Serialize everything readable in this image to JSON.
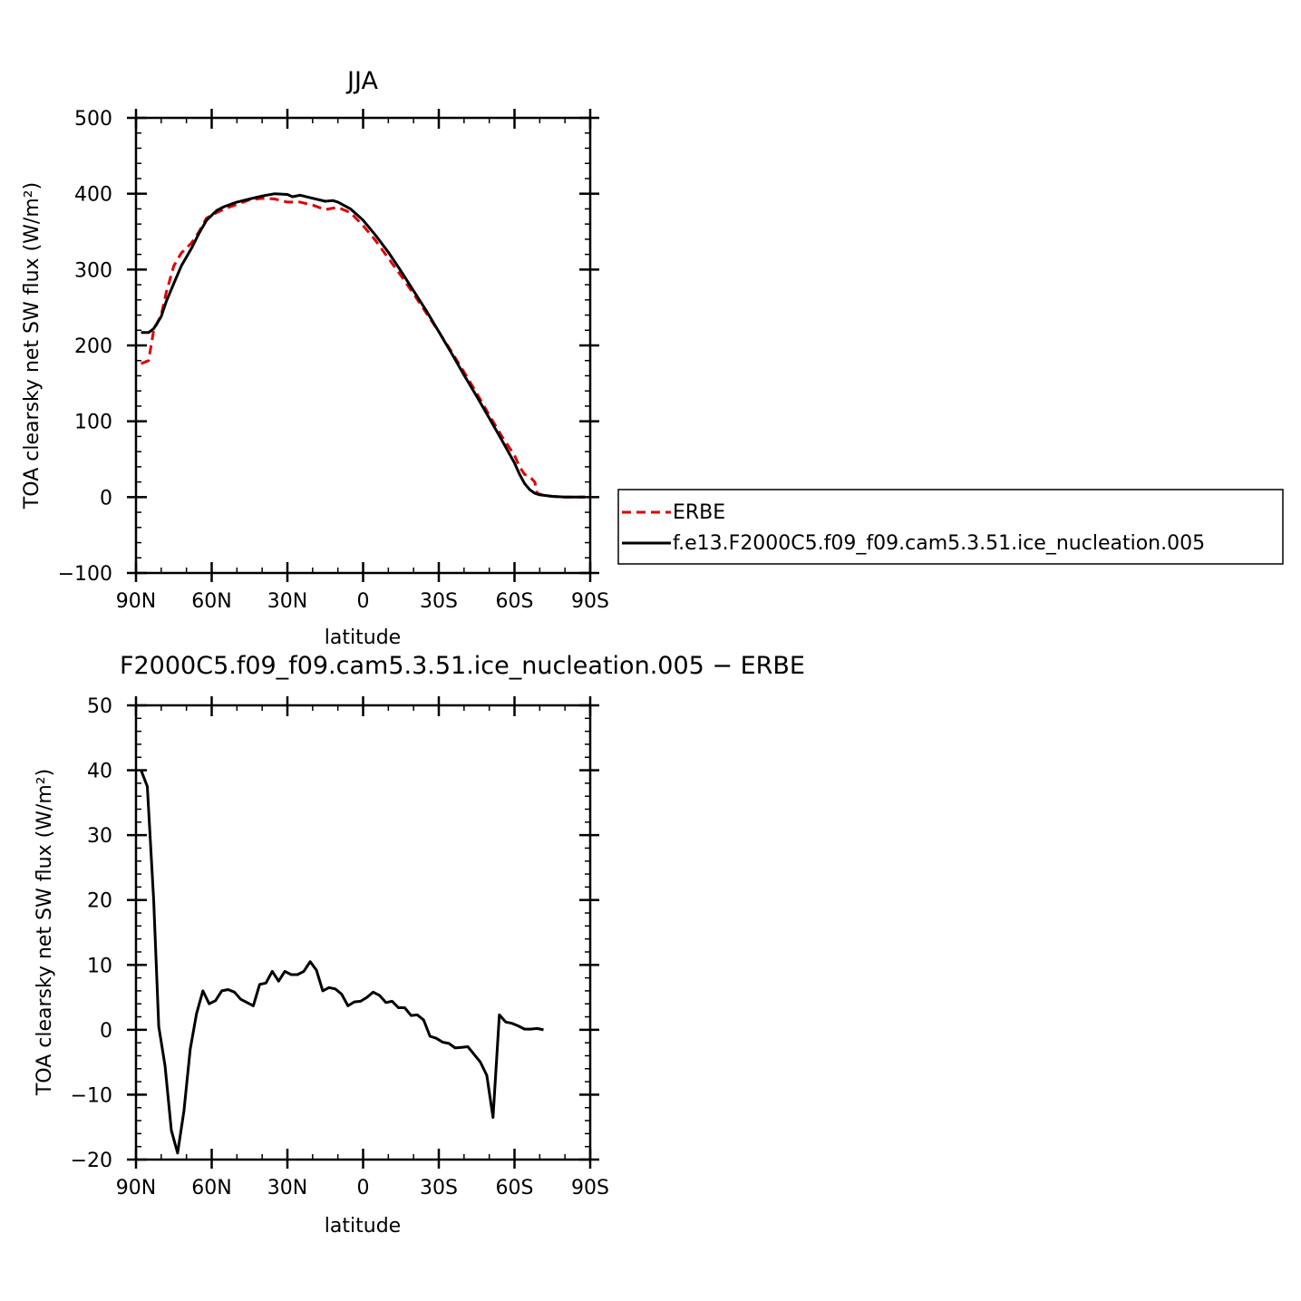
{
  "chart_data": [
    {
      "type": "line",
      "title": "JJA",
      "xlabel": "latitude",
      "ylabel": "TOA clearsky net SW flux (W/m²)",
      "xlim": [
        90,
        -90
      ],
      "ylim": [
        -100,
        500
      ],
      "x_ticks": [
        90,
        60,
        30,
        0,
        -30,
        -60,
        -90
      ],
      "x_tick_labels": [
        "90N",
        "60N",
        "30N",
        "0",
        "30S",
        "60S",
        "90S"
      ],
      "y_ticks": [
        -100,
        0,
        100,
        200,
        300,
        400,
        500
      ],
      "y_tick_labels": [
        "−100",
        "0",
        "100",
        "200",
        "300",
        "400",
        "500"
      ],
      "legend": {
        "placement": "right"
      },
      "series": [
        {
          "name": "ERBE",
          "color": "#e00000",
          "style": "dashed",
          "points": [
            [
              88,
              176
            ],
            [
              85,
              180
            ],
            [
              83,
              220
            ],
            [
              80,
              240
            ],
            [
              78,
              270
            ],
            [
              75,
              305
            ],
            [
              72,
              322
            ],
            [
              68,
              335
            ],
            [
              65,
              350
            ],
            [
              62,
              368
            ],
            [
              58,
              375
            ],
            [
              55,
              380
            ],
            [
              50,
              386
            ],
            [
              45,
              392
            ],
            [
              40,
              394
            ],
            [
              35,
              393
            ],
            [
              30,
              389
            ],
            [
              25,
              389
            ],
            [
              20,
              385
            ],
            [
              15,
              379
            ],
            [
              12,
              381
            ],
            [
              10,
              382
            ],
            [
              5,
              375
            ],
            [
              0,
              358
            ],
            [
              -5,
              338
            ],
            [
              -10,
              315
            ],
            [
              -15,
              292
            ],
            [
              -20,
              268
            ],
            [
              -25,
              243
            ],
            [
              -30,
              218
            ],
            [
              -35,
              192
            ],
            [
              -40,
              165
            ],
            [
              -45,
              137
            ],
            [
              -50,
              108
            ],
            [
              -55,
              80
            ],
            [
              -60,
              55
            ],
            [
              -62,
              40
            ],
            [
              -64,
              30
            ],
            [
              -66,
              27
            ],
            [
              -68,
              20
            ],
            [
              -69,
              5
            ],
            [
              -72,
              2
            ],
            [
              -75,
              1
            ],
            [
              -80,
              0
            ],
            [
              -85,
              0
            ],
            [
              -88,
              0
            ]
          ]
        },
        {
          "name": "f.e13.F2000C5.f09_f09.cam5.3.51.ice_nucleation.005",
          "color": "#000000",
          "style": "solid",
          "points": [
            [
              88,
              217
            ],
            [
              85,
              217
            ],
            [
              83,
              222
            ],
            [
              80,
              238
            ],
            [
              78,
              258
            ],
            [
              75,
              282
            ],
            [
              72,
              305
            ],
            [
              68,
              328
            ],
            [
              65,
              348
            ],
            [
              62,
              365
            ],
            [
              58,
              378
            ],
            [
              55,
              383
            ],
            [
              50,
              389
            ],
            [
              45,
              393
            ],
            [
              40,
              397
            ],
            [
              35,
              400
            ],
            [
              30,
              399
            ],
            [
              28,
              396
            ],
            [
              25,
              398
            ],
            [
              20,
              394
            ],
            [
              15,
              390
            ],
            [
              12,
              391
            ],
            [
              10,
              389
            ],
            [
              5,
              380
            ],
            [
              0,
              365
            ],
            [
              -5,
              345
            ],
            [
              -10,
              323
            ],
            [
              -15,
              298
            ],
            [
              -20,
              272
            ],
            [
              -25,
              246
            ],
            [
              -30,
              218
            ],
            [
              -35,
              190
            ],
            [
              -40,
              161
            ],
            [
              -45,
              133
            ],
            [
              -50,
              104
            ],
            [
              -55,
              75
            ],
            [
              -60,
              45
            ],
            [
              -62,
              30
            ],
            [
              -64,
              18
            ],
            [
              -66,
              10
            ],
            [
              -68,
              5
            ],
            [
              -70,
              3
            ],
            [
              -75,
              1
            ],
            [
              -80,
              0
            ],
            [
              -85,
              0
            ],
            [
              -88,
              0
            ]
          ]
        }
      ]
    },
    {
      "type": "line",
      "title": "F2000C5.f09_f09.cam5.3.51.ice_nucleation.005 − ERBE",
      "xlabel": "latitude",
      "ylabel": "TOA clearsky net SW flux (W/m²)",
      "xlim": [
        90,
        -90
      ],
      "ylim": [
        -20,
        50
      ],
      "x_ticks": [
        90,
        60,
        30,
        0,
        -30,
        -60,
        -90
      ],
      "x_tick_labels": [
        "90N",
        "60N",
        "30N",
        "0",
        "30S",
        "60S",
        "90S"
      ],
      "y_ticks": [
        -20,
        -10,
        0,
        10,
        20,
        30,
        40,
        50
      ],
      "y_tick_labels": [
        "−20",
        "−10",
        "0",
        "10",
        "20",
        "30",
        "40",
        "50"
      ],
      "series": [
        {
          "color": "#000000",
          "style": "solid",
          "points": [
            [
              88,
              40
            ],
            [
              85.5,
              37.5
            ],
            [
              83,
              20
            ],
            [
              81,
              0.5
            ],
            [
              78.5,
              -5.5
            ],
            [
              76,
              -15.5
            ],
            [
              73.5,
              -19
            ],
            [
              71,
              -12.5
            ],
            [
              68.5,
              -3
            ],
            [
              66,
              2.5
            ],
            [
              63.5,
              6
            ],
            [
              61,
              4
            ],
            [
              58.5,
              4.5
            ],
            [
              56,
              6
            ],
            [
              53.5,
              6.2
            ],
            [
              51,
              5.8
            ],
            [
              48.5,
              4.7
            ],
            [
              46,
              4.2
            ],
            [
              43.5,
              3.7
            ],
            [
              41,
              7
            ],
            [
              38.5,
              7.2
            ],
            [
              36,
              9
            ],
            [
              33.5,
              7.5
            ],
            [
              31,
              9
            ],
            [
              28.5,
              8.5
            ],
            [
              26,
              8.5
            ],
            [
              23.5,
              9
            ],
            [
              21,
              10.5
            ],
            [
              18.5,
              9.2
            ],
            [
              16,
              6
            ],
            [
              13.5,
              6.5
            ],
            [
              11,
              6.3
            ],
            [
              8.5,
              5.5
            ],
            [
              6,
              3.7
            ],
            [
              3.5,
              4.3
            ],
            [
              1,
              4.4
            ],
            [
              -1.5,
              5
            ],
            [
              -4,
              5.8
            ],
            [
              -6.5,
              5.3
            ],
            [
              -9,
              4.2
            ],
            [
              -11.5,
              4.4
            ],
            [
              -14,
              3.4
            ],
            [
              -16.5,
              3.4
            ],
            [
              -19,
              2.2
            ],
            [
              -21.5,
              2.3
            ],
            [
              -24,
              1.5
            ],
            [
              -26.5,
              -1
            ],
            [
              -29,
              -1.3
            ],
            [
              -31.5,
              -1.9
            ],
            [
              -34,
              -2.1
            ],
            [
              -36.5,
              -2.8
            ],
            [
              -39,
              -2.7
            ],
            [
              -41.5,
              -2.6
            ],
            [
              -44,
              -3.8
            ],
            [
              -46.5,
              -5
            ],
            [
              -49,
              -7
            ],
            [
              -51.5,
              -13.5
            ],
            [
              -54,
              2.3
            ],
            [
              -56.5,
              1.2
            ],
            [
              -59,
              1
            ],
            [
              -61.5,
              0.6
            ],
            [
              -64,
              0.1
            ],
            [
              -66.5,
              0.1
            ],
            [
              -69,
              0.2
            ],
            [
              -71.5,
              0
            ]
          ]
        }
      ]
    }
  ]
}
